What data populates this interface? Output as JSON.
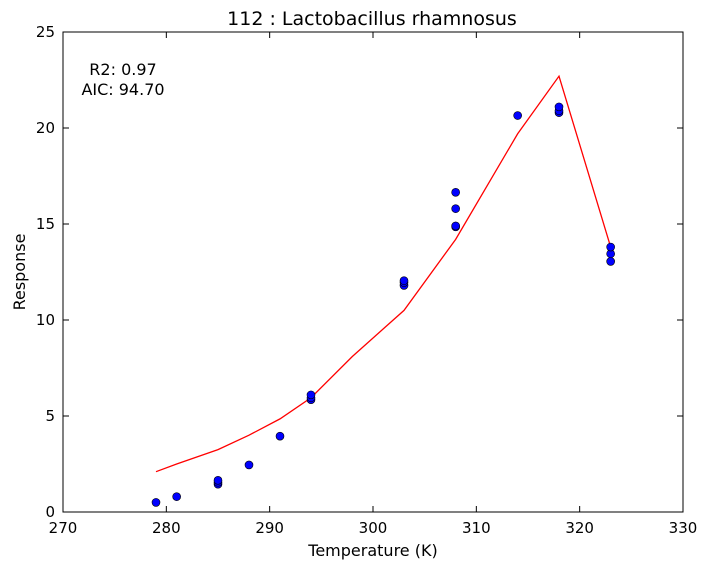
{
  "chart_data": {
    "type": "scatter",
    "title": "112 : Lactobacillus rhamnosus",
    "xlabel": "Temperature (K)",
    "ylabel": "Response",
    "xlim": [
      270,
      330
    ],
    "ylim": [
      0,
      25
    ],
    "xticks": [
      270,
      280,
      290,
      300,
      310,
      320,
      330
    ],
    "yticks": [
      0,
      5,
      10,
      15,
      20,
      25
    ],
    "grid": false,
    "annotations": [
      "R2: 0.97",
      "AIC: 94.70"
    ],
    "colors": {
      "points": "#0000ff",
      "fit": "#ff0000"
    },
    "series": [
      {
        "kind": "scatter",
        "x": [
          279,
          281,
          285,
          285,
          285,
          288,
          291,
          294,
          294,
          294,
          303,
          303,
          303,
          308,
          308,
          308,
          308,
          314,
          318,
          318,
          318,
          323,
          323,
          323
        ],
        "y": [
          0.5,
          0.8,
          1.45,
          1.55,
          1.65,
          2.45,
          3.95,
          5.85,
          5.95,
          6.1,
          11.8,
          11.95,
          12.05,
          14.85,
          14.9,
          15.8,
          16.65,
          20.65,
          20.8,
          20.9,
          21.1,
          13.05,
          13.45,
          13.8
        ]
      },
      {
        "kind": "line",
        "x": [
          279,
          281,
          285,
          288,
          291,
          294,
          298,
          303,
          308,
          314,
          318,
          323
        ],
        "y": [
          2.1,
          2.5,
          3.25,
          4.0,
          4.85,
          5.95,
          8.1,
          10.5,
          14.2,
          19.7,
          22.7,
          13.8
        ]
      }
    ]
  }
}
